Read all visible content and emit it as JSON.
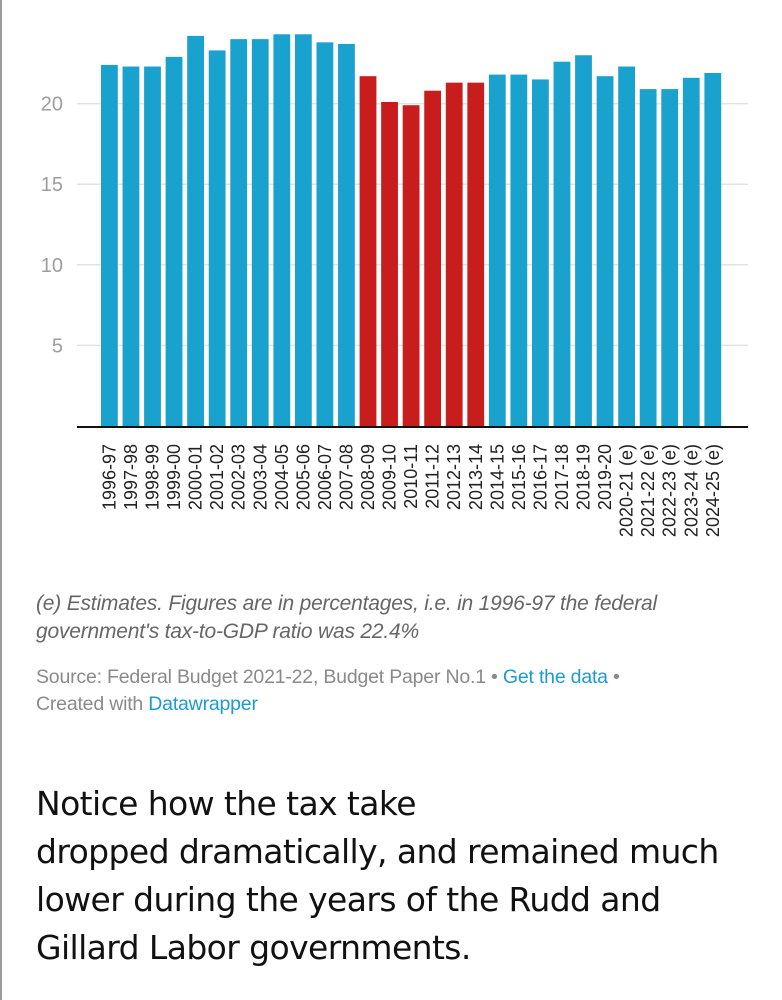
{
  "chart_data": {
    "type": "bar",
    "title": "",
    "xlabel": "",
    "ylabel": "",
    "ylim": [
      0,
      25
    ],
    "yticks": [
      5,
      10,
      15,
      20
    ],
    "grid": true,
    "categories": [
      "1996-97",
      "1997-98",
      "1998-99",
      "1999-00",
      "2000-01",
      "2001-02",
      "2002-03",
      "2003-04",
      "2004-05",
      "2005-06",
      "2006-07",
      "2007-08",
      "2008-09",
      "2009-10",
      "2010-11",
      "2011-12",
      "2012-13",
      "2013-14",
      "2014-15",
      "2015-16",
      "2016-17",
      "2017-18",
      "2018-19",
      "2019-20",
      "2020-21 (e)",
      "2021-22 (e)",
      "2022-23 (e)",
      "2023-24 (e)",
      "2024-25 (e)"
    ],
    "values": [
      22.4,
      22.3,
      22.3,
      22.9,
      24.2,
      23.3,
      24.0,
      24.0,
      24.3,
      24.3,
      23.8,
      23.7,
      21.7,
      20.1,
      19.9,
      20.8,
      21.3,
      21.3,
      21.8,
      21.8,
      21.5,
      22.6,
      23.0,
      21.7,
      22.3,
      20.9,
      20.9,
      21.6,
      21.9
    ],
    "highlighted": [
      false,
      false,
      false,
      false,
      false,
      false,
      false,
      false,
      false,
      false,
      false,
      false,
      true,
      true,
      true,
      true,
      true,
      true,
      false,
      false,
      false,
      false,
      false,
      false,
      false,
      false,
      false,
      false,
      false
    ],
    "colors": {
      "default": "#1aa2cf",
      "highlight": "#c71e1d",
      "grid": "#e3e3e3",
      "axis": "#111111"
    },
    "legend": "none"
  },
  "notes": {
    "text": "(e) Estimates. Figures are in percentages, i.e. in 1996-97 the federal government's tax-to-GDP ratio was 22.4%"
  },
  "source": {
    "prefix": "Source: Federal Budget 2021-22, Budget Paper No.1",
    "separator": " • ",
    "get_data_label": "Get the data",
    "created_prefix": "Created with ",
    "datawrapper_label": "Datawrapper"
  },
  "article": {
    "lines": [
      "Notice how the tax take",
      "dropped dramatically, and remained much",
      "lower during the years of the Rudd and",
      "Gillard Labor governments."
    ]
  }
}
